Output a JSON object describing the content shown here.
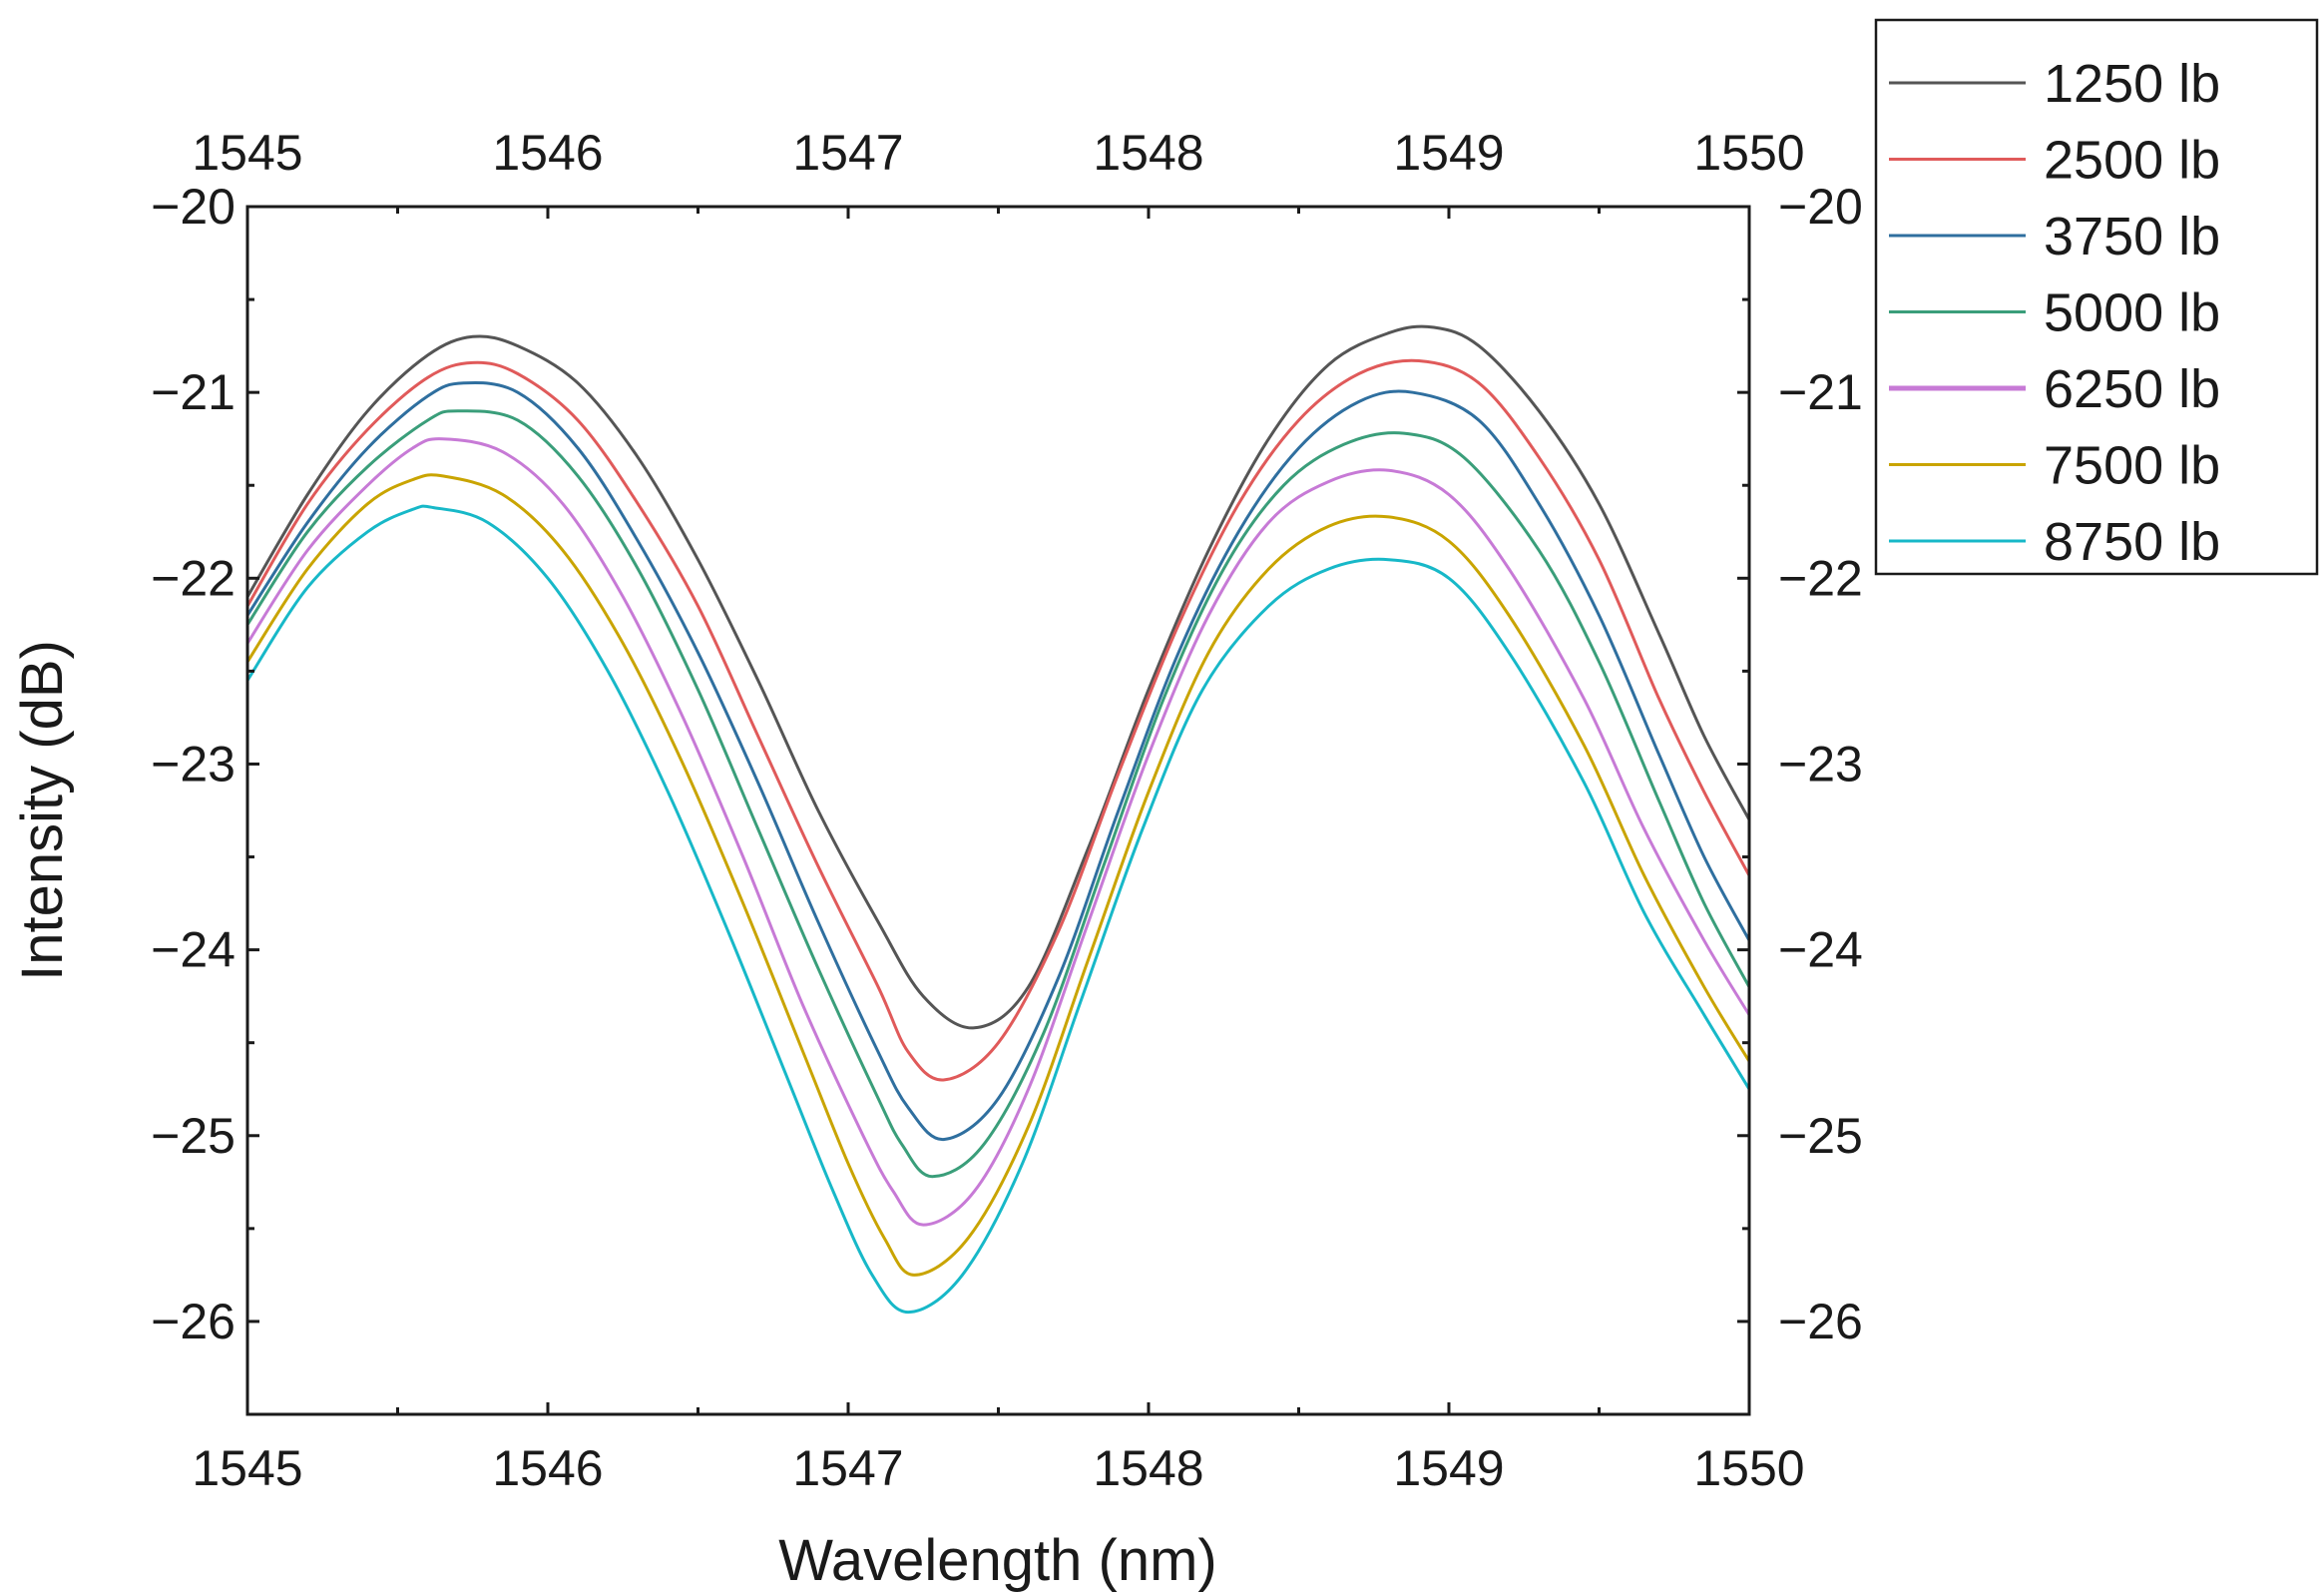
{
  "chart_data": {
    "type": "line",
    "title": "",
    "xlabel": "Wavelength (nm)",
    "ylabel": "Intensity (dB)",
    "xlim": [
      1545,
      1550
    ],
    "ylim": [
      -26.5,
      -20
    ],
    "x_ticks": [
      1545,
      1546,
      1547,
      1548,
      1549,
      1550
    ],
    "x_tick_labels": [
      "1545",
      "1546",
      "1547",
      "1548",
      "1549",
      "1550"
    ],
    "y_ticks": [
      -20,
      -21,
      -22,
      -23,
      -24,
      -25,
      -26
    ],
    "y_tick_labels": [
      "−20",
      "−21",
      "−22",
      "−23",
      "−24",
      "−25",
      "−26"
    ],
    "mirror_axes": "top-and-right",
    "grid": false,
    "legend_position": "top-right, outside plot",
    "series": [
      {
        "name": "1250 lb",
        "color": "#555555",
        "points": [
          [
            1545,
            -22.1
          ],
          [
            1545.2,
            -21.55
          ],
          [
            1545.4,
            -21.1
          ],
          [
            1545.6,
            -20.8
          ],
          [
            1545.75,
            -20.7
          ],
          [
            1545.9,
            -20.75
          ],
          [
            1546.1,
            -20.95
          ],
          [
            1546.3,
            -21.35
          ],
          [
            1546.5,
            -21.9
          ],
          [
            1546.7,
            -22.55
          ],
          [
            1546.9,
            -23.25
          ],
          [
            1547.1,
            -23.85
          ],
          [
            1547.25,
            -24.25
          ],
          [
            1547.42,
            -24.42
          ],
          [
            1547.6,
            -24.2
          ],
          [
            1547.8,
            -23.45
          ],
          [
            1548.0,
            -22.6
          ],
          [
            1548.2,
            -21.85
          ],
          [
            1548.4,
            -21.25
          ],
          [
            1548.6,
            -20.85
          ],
          [
            1548.8,
            -20.68
          ],
          [
            1548.95,
            -20.65
          ],
          [
            1549.1,
            -20.75
          ],
          [
            1549.3,
            -21.1
          ],
          [
            1549.5,
            -21.6
          ],
          [
            1549.7,
            -22.3
          ],
          [
            1549.85,
            -22.85
          ],
          [
            1550,
            -23.3
          ]
        ]
      },
      {
        "name": "2500 lb",
        "color": "#e05a5a",
        "points": [
          [
            1545,
            -22.15
          ],
          [
            1545.2,
            -21.6
          ],
          [
            1545.4,
            -21.2
          ],
          [
            1545.6,
            -20.92
          ],
          [
            1545.75,
            -20.84
          ],
          [
            1545.9,
            -20.9
          ],
          [
            1546.1,
            -21.15
          ],
          [
            1546.3,
            -21.6
          ],
          [
            1546.5,
            -22.15
          ],
          [
            1546.7,
            -22.85
          ],
          [
            1546.9,
            -23.55
          ],
          [
            1547.1,
            -24.2
          ],
          [
            1547.2,
            -24.55
          ],
          [
            1547.32,
            -24.7
          ],
          [
            1547.5,
            -24.5
          ],
          [
            1547.7,
            -23.9
          ],
          [
            1547.9,
            -23.05
          ],
          [
            1548.1,
            -22.25
          ],
          [
            1548.3,
            -21.6
          ],
          [
            1548.5,
            -21.15
          ],
          [
            1548.7,
            -20.9
          ],
          [
            1548.9,
            -20.83
          ],
          [
            1549.1,
            -20.95
          ],
          [
            1549.3,
            -21.35
          ],
          [
            1549.5,
            -21.9
          ],
          [
            1549.7,
            -22.65
          ],
          [
            1549.85,
            -23.15
          ],
          [
            1550,
            -23.6
          ]
        ]
      },
      {
        "name": "3750 lb",
        "color": "#2f6f9f",
        "points": [
          [
            1545,
            -22.2
          ],
          [
            1545.2,
            -21.7
          ],
          [
            1545.4,
            -21.3
          ],
          [
            1545.6,
            -21.02
          ],
          [
            1545.72,
            -20.95
          ],
          [
            1545.9,
            -21.0
          ],
          [
            1546.1,
            -21.3
          ],
          [
            1546.3,
            -21.8
          ],
          [
            1546.5,
            -22.4
          ],
          [
            1546.7,
            -23.1
          ],
          [
            1546.9,
            -23.85
          ],
          [
            1547.1,
            -24.55
          ],
          [
            1547.2,
            -24.85
          ],
          [
            1547.32,
            -25.02
          ],
          [
            1547.5,
            -24.8
          ],
          [
            1547.7,
            -24.15
          ],
          [
            1547.9,
            -23.25
          ],
          [
            1548.1,
            -22.4
          ],
          [
            1548.3,
            -21.75
          ],
          [
            1548.5,
            -21.3
          ],
          [
            1548.7,
            -21.05
          ],
          [
            1548.88,
            -21.0
          ],
          [
            1549.1,
            -21.15
          ],
          [
            1549.3,
            -21.6
          ],
          [
            1549.5,
            -22.2
          ],
          [
            1549.7,
            -22.95
          ],
          [
            1549.85,
            -23.5
          ],
          [
            1550,
            -23.95
          ]
        ]
      },
      {
        "name": "5000 lb",
        "color": "#3a9e7a",
        "points": [
          [
            1545,
            -22.25
          ],
          [
            1545.2,
            -21.75
          ],
          [
            1545.4,
            -21.4
          ],
          [
            1545.6,
            -21.15
          ],
          [
            1545.7,
            -21.1
          ],
          [
            1545.9,
            -21.15
          ],
          [
            1546.1,
            -21.45
          ],
          [
            1546.3,
            -21.95
          ],
          [
            1546.5,
            -22.6
          ],
          [
            1546.7,
            -23.35
          ],
          [
            1546.9,
            -24.1
          ],
          [
            1547.1,
            -24.8
          ],
          [
            1547.18,
            -25.05
          ],
          [
            1547.28,
            -25.22
          ],
          [
            1547.45,
            -25.05
          ],
          [
            1547.65,
            -24.45
          ],
          [
            1547.85,
            -23.55
          ],
          [
            1548.05,
            -22.65
          ],
          [
            1548.25,
            -21.95
          ],
          [
            1548.45,
            -21.5
          ],
          [
            1548.65,
            -21.28
          ],
          [
            1548.85,
            -21.22
          ],
          [
            1549.05,
            -21.35
          ],
          [
            1549.3,
            -21.85
          ],
          [
            1549.5,
            -22.45
          ],
          [
            1549.7,
            -23.2
          ],
          [
            1549.85,
            -23.75
          ],
          [
            1550,
            -24.2
          ]
        ]
      },
      {
        "name": "6250 lb",
        "color": "#c77ad6",
        "points": [
          [
            1545,
            -22.35
          ],
          [
            1545.2,
            -21.85
          ],
          [
            1545.4,
            -21.5
          ],
          [
            1545.55,
            -21.3
          ],
          [
            1545.65,
            -21.25
          ],
          [
            1545.85,
            -21.32
          ],
          [
            1546.05,
            -21.6
          ],
          [
            1546.25,
            -22.1
          ],
          [
            1546.45,
            -22.75
          ],
          [
            1546.65,
            -23.5
          ],
          [
            1546.85,
            -24.3
          ],
          [
            1547.05,
            -25.0
          ],
          [
            1547.15,
            -25.3
          ],
          [
            1547.25,
            -25.48
          ],
          [
            1547.42,
            -25.3
          ],
          [
            1547.6,
            -24.75
          ],
          [
            1547.8,
            -23.85
          ],
          [
            1548.0,
            -22.95
          ],
          [
            1548.2,
            -22.2
          ],
          [
            1548.4,
            -21.7
          ],
          [
            1548.6,
            -21.48
          ],
          [
            1548.8,
            -21.42
          ],
          [
            1549.0,
            -21.55
          ],
          [
            1549.2,
            -21.95
          ],
          [
            1549.45,
            -22.65
          ],
          [
            1549.65,
            -23.35
          ],
          [
            1549.85,
            -23.95
          ],
          [
            1550,
            -24.35
          ]
        ]
      },
      {
        "name": "7500 lb",
        "color": "#c9a400",
        "points": [
          [
            1545,
            -22.45
          ],
          [
            1545.2,
            -21.95
          ],
          [
            1545.4,
            -21.6
          ],
          [
            1545.55,
            -21.47
          ],
          [
            1545.65,
            -21.45
          ],
          [
            1545.85,
            -21.55
          ],
          [
            1546.05,
            -21.85
          ],
          [
            1546.25,
            -22.35
          ],
          [
            1546.45,
            -23.0
          ],
          [
            1546.65,
            -23.75
          ],
          [
            1546.85,
            -24.55
          ],
          [
            1547.0,
            -25.15
          ],
          [
            1547.12,
            -25.55
          ],
          [
            1547.22,
            -25.75
          ],
          [
            1547.4,
            -25.55
          ],
          [
            1547.6,
            -24.95
          ],
          [
            1547.8,
            -24.05
          ],
          [
            1548.0,
            -23.15
          ],
          [
            1548.2,
            -22.4
          ],
          [
            1548.4,
            -21.95
          ],
          [
            1548.6,
            -21.72
          ],
          [
            1548.8,
            -21.67
          ],
          [
            1549.0,
            -21.8
          ],
          [
            1549.2,
            -22.2
          ],
          [
            1549.45,
            -22.9
          ],
          [
            1549.65,
            -23.6
          ],
          [
            1549.85,
            -24.2
          ],
          [
            1550,
            -24.6
          ]
        ]
      },
      {
        "name": "8750 lb",
        "color": "#17b8c8",
        "points": [
          [
            1545,
            -22.55
          ],
          [
            1545.2,
            -22.05
          ],
          [
            1545.4,
            -21.75
          ],
          [
            1545.55,
            -21.63
          ],
          [
            1545.62,
            -21.62
          ],
          [
            1545.8,
            -21.7
          ],
          [
            1546.0,
            -22.0
          ],
          [
            1546.2,
            -22.5
          ],
          [
            1546.4,
            -23.15
          ],
          [
            1546.6,
            -23.9
          ],
          [
            1546.8,
            -24.7
          ],
          [
            1546.95,
            -25.3
          ],
          [
            1547.08,
            -25.75
          ],
          [
            1547.2,
            -25.95
          ],
          [
            1547.38,
            -25.75
          ],
          [
            1547.58,
            -25.15
          ],
          [
            1547.78,
            -24.25
          ],
          [
            1547.98,
            -23.35
          ],
          [
            1548.18,
            -22.6
          ],
          [
            1548.4,
            -22.15
          ],
          [
            1548.6,
            -21.95
          ],
          [
            1548.8,
            -21.9
          ],
          [
            1549.0,
            -22.0
          ],
          [
            1549.2,
            -22.4
          ],
          [
            1549.45,
            -23.1
          ],
          [
            1549.65,
            -23.8
          ],
          [
            1549.85,
            -24.35
          ],
          [
            1550,
            -24.75
          ]
        ]
      }
    ]
  }
}
